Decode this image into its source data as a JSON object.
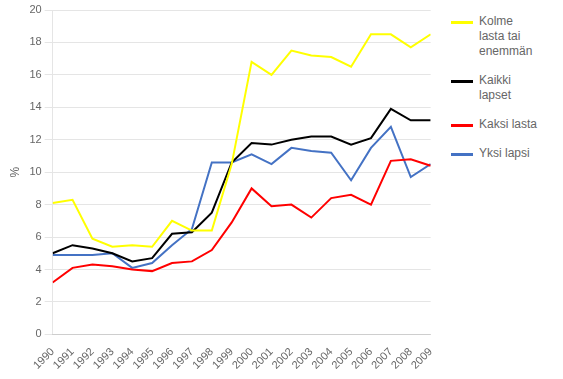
{
  "chart_data": {
    "type": "line",
    "ylabel": "%",
    "x": [
      1990,
      1991,
      1992,
      1993,
      1994,
      1995,
      1996,
      1997,
      1998,
      1999,
      2000,
      2001,
      2002,
      2003,
      2004,
      2005,
      2006,
      2007,
      2008,
      2009
    ],
    "xlim": [
      1990,
      2009
    ],
    "xticks": [
      1990,
      1991,
      1992,
      1993,
      1994,
      1995,
      1996,
      1997,
      1998,
      1999,
      2000,
      2001,
      2002,
      2003,
      2004,
      2005,
      2006,
      2007,
      2008,
      2009
    ],
    "ylim": [
      0,
      20
    ],
    "yticks": [
      0,
      2,
      4,
      6,
      8,
      10,
      12,
      14,
      16,
      18,
      20
    ],
    "grid": "y",
    "legend": "right",
    "series": [
      {
        "name": "Kolme\nlasta tai\nenemmän",
        "color": "#ffff00",
        "values": [
          8.1,
          8.3,
          5.9,
          5.4,
          5.5,
          5.4,
          7.0,
          6.4,
          6.4,
          10.5,
          16.8,
          16.0,
          17.5,
          17.2,
          17.1,
          16.5,
          18.5,
          18.5,
          17.7,
          18.5
        ]
      },
      {
        "name": "Kaikki\nlapset",
        "color": "#000000",
        "values": [
          5.0,
          5.5,
          5.3,
          5.0,
          4.5,
          4.7,
          6.2,
          6.3,
          7.5,
          10.6,
          11.8,
          11.7,
          12.0,
          12.2,
          12.2,
          11.7,
          12.1,
          13.9,
          13.2,
          13.2
        ]
      },
      {
        "name": "Kaksi lasta",
        "color": "#ff0000",
        "values": [
          3.2,
          4.1,
          4.3,
          4.2,
          4.0,
          3.9,
          4.4,
          4.5,
          5.2,
          6.9,
          9.0,
          7.9,
          8.0,
          7.2,
          8.4,
          8.6,
          8.0,
          10.7,
          10.8,
          10.4
        ]
      },
      {
        "name": "Yksi lapsi",
        "color": "#4472c4",
        "values": [
          4.9,
          4.9,
          4.9,
          5.0,
          4.1,
          4.4,
          5.5,
          6.5,
          10.6,
          10.6,
          11.1,
          10.5,
          11.5,
          11.3,
          11.2,
          9.5,
          11.5,
          12.8,
          9.7,
          10.5
        ]
      }
    ]
  }
}
